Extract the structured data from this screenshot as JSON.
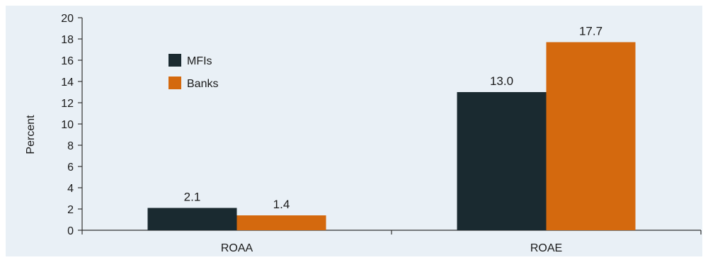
{
  "chart_data": {
    "type": "bar",
    "title": "",
    "xlabel": "",
    "ylabel": "Percent",
    "ylim": [
      0,
      20
    ],
    "yticks": [
      0,
      2,
      4,
      6,
      8,
      10,
      12,
      14,
      16,
      18,
      20
    ],
    "categories": [
      "ROAA",
      "ROAE"
    ],
    "series": [
      {
        "name": "MFIs",
        "values": [
          2.1,
          13.0
        ],
        "labels": [
          "2.1",
          "13.0"
        ],
        "color": "#1a2a30"
      },
      {
        "name": "Banks",
        "values": [
          1.4,
          17.7
        ],
        "labels": [
          "1.4",
          "17.7"
        ],
        "color": "#d4690e"
      }
    ],
    "legend": "top-left",
    "grid": false,
    "background": "#e9f0f6"
  }
}
